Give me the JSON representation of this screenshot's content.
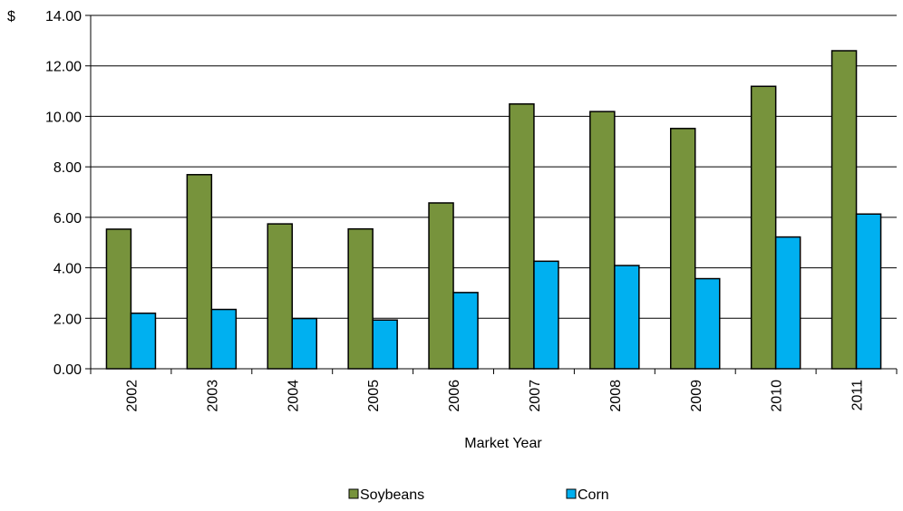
{
  "chart_data": {
    "type": "bar",
    "title": "",
    "ylabel_prefix": "$",
    "xlabel": "Market Year",
    "categories": [
      "2002",
      "2003",
      "2004",
      "2005",
      "2006",
      "2007",
      "2008",
      "2009",
      "2010",
      "2011"
    ],
    "series": [
      {
        "name": "Soybeans",
        "color": "#77933c",
        "values": [
          5.53,
          7.69,
          5.74,
          5.54,
          6.57,
          10.49,
          10.19,
          9.52,
          11.19,
          12.6
        ]
      },
      {
        "name": "Corn",
        "color": "#00b0f0",
        "values": [
          2.2,
          2.35,
          1.99,
          1.93,
          3.02,
          4.26,
          4.09,
          3.57,
          5.22,
          6.13
        ]
      }
    ],
    "ylim": [
      0,
      14
    ],
    "yticks": [
      "0.00",
      "2.00",
      "4.00",
      "6.00",
      "8.00",
      "10.00",
      "12.00",
      "14.00"
    ],
    "grid": true,
    "legend_position": "bottom"
  }
}
